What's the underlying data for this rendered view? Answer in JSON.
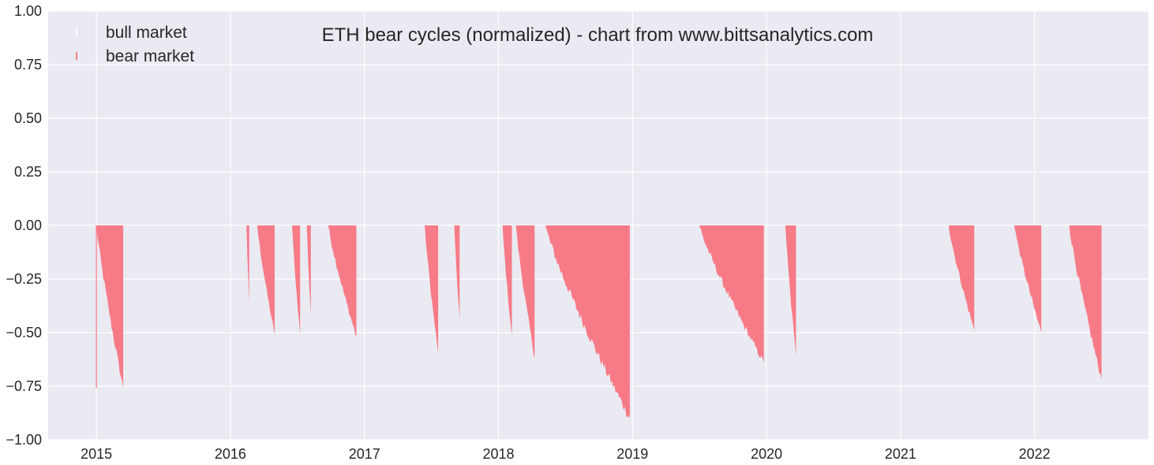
{
  "chart_data": {
    "type": "bar",
    "title": "ETH bear cycles (normalized)  - chart from www.bittsanalytics.com",
    "xlabel": "",
    "ylabel": "",
    "xlim": [
      2014.64,
      2022.85
    ],
    "ylim": [
      -1.0,
      1.0
    ],
    "grid": true,
    "legend_position": "top-left",
    "colors": {
      "background": "#eaeaf2",
      "grid": "#ffffff",
      "bear": "#f77b87",
      "bull": "#ffffff"
    },
    "x_ticks": [
      {
        "value": 2015.0,
        "label": "2015"
      },
      {
        "value": 2016.0,
        "label": "2016"
      },
      {
        "value": 2017.0,
        "label": "2017"
      },
      {
        "value": 2018.0,
        "label": "2018"
      },
      {
        "value": 2019.0,
        "label": "2019"
      },
      {
        "value": 2020.0,
        "label": "2020"
      },
      {
        "value": 2021.0,
        "label": "2021"
      },
      {
        "value": 2022.0,
        "label": "2022"
      }
    ],
    "y_ticks": [
      {
        "value": 1.0,
        "label": "1.00"
      },
      {
        "value": 0.75,
        "label": "0.75"
      },
      {
        "value": 0.5,
        "label": "0.50"
      },
      {
        "value": 0.25,
        "label": "0.25"
      },
      {
        "value": 0.0,
        "label": "0.00"
      },
      {
        "value": -0.25,
        "label": "−0.25"
      },
      {
        "value": -0.5,
        "label": "−0.50"
      },
      {
        "value": -0.75,
        "label": "−0.75"
      },
      {
        "value": -1.0,
        "label": "−1.00"
      }
    ],
    "legend": [
      {
        "name": "bull market",
        "color": "#ffffff"
      },
      {
        "name": "bear market",
        "color": "#f77b87"
      }
    ],
    "series": [
      {
        "name": "bear market",
        "color": "#f77b87",
        "episodes": [
          {
            "start": 2015.0,
            "end": 2015.2,
            "min": -0.76,
            "spikes": [
              [
                2015.0,
                -0.76
              ]
            ]
          },
          {
            "start": 2016.12,
            "end": 2016.14,
            "min": -0.37
          },
          {
            "start": 2016.2,
            "end": 2016.33,
            "min": -0.51
          },
          {
            "start": 2016.46,
            "end": 2016.52,
            "min": -0.51
          },
          {
            "start": 2016.57,
            "end": 2016.6,
            "min": -0.42
          },
          {
            "start": 2016.73,
            "end": 2016.94,
            "min": -0.52
          },
          {
            "start": 2017.45,
            "end": 2017.55,
            "min": -0.6
          },
          {
            "start": 2017.67,
            "end": 2017.71,
            "min": -0.44
          },
          {
            "start": 2018.03,
            "end": 2018.1,
            "min": -0.52
          },
          {
            "start": 2018.13,
            "end": 2018.27,
            "min": -0.62
          },
          {
            "start": 2018.35,
            "end": 2018.98,
            "min": -0.9
          },
          {
            "start": 2019.5,
            "end": 2019.98,
            "min": -0.64
          },
          {
            "start": 2020.14,
            "end": 2020.22,
            "min": -0.61
          },
          {
            "start": 2021.36,
            "end": 2021.55,
            "min": -0.49
          },
          {
            "start": 2021.85,
            "end": 2022.05,
            "min": -0.5
          },
          {
            "start": 2022.26,
            "end": 2022.5,
            "min": -0.72
          }
        ]
      }
    ]
  }
}
